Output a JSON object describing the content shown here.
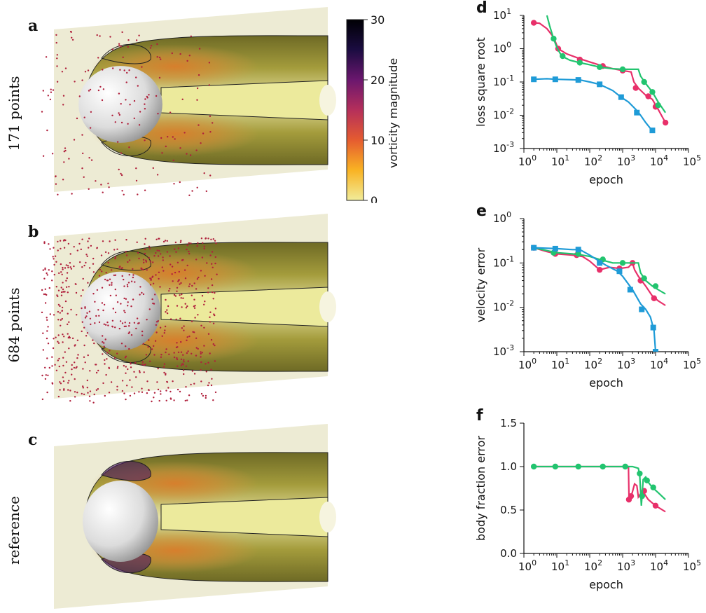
{
  "panels": {
    "a": {
      "letter": "a",
      "label": "171 points",
      "n_points": 171,
      "sphere_deform": 0.18
    },
    "b": {
      "letter": "b",
      "label": "684 points",
      "n_points": 684,
      "sphere_deform": 0.1
    },
    "c": {
      "letter": "c",
      "label": "reference",
      "n_points": 0,
      "sphere_deform": 0
    }
  },
  "colorbar": {
    "label": "vorticity magnitude",
    "ticks": [
      "0",
      "10",
      "20",
      "30"
    ],
    "range": [
      0,
      30
    ],
    "colors": [
      "#f1ec9a",
      "#f9b323",
      "#e55c30",
      "#b52f5b",
      "#6b176e",
      "#1b0c41",
      "#000004"
    ]
  },
  "colors": {
    "red": "#e8306a",
    "green": "#22c46f",
    "blue": "#1f9bd7",
    "points": "#b0203c"
  },
  "chart_data": [
    {
      "type": "line",
      "letter": "d",
      "xlabel": "epoch",
      "ylabel": "loss square root",
      "xscale": "log",
      "yscale": "log",
      "xlim": [
        1,
        100000
      ],
      "ylim": [
        0.001,
        10
      ],
      "xticks": [
        "10^0",
        "10^1",
        "10^2",
        "10^3",
        "10^4",
        "10^5"
      ],
      "yticks": [
        "10^-3",
        "10^-2",
        "10^-1",
        "10^0",
        "10^1"
      ],
      "series": [
        {
          "color": "#e8306a",
          "marker": "circle",
          "line": [
            [
              2,
              6
            ],
            [
              3,
              5.8
            ],
            [
              5,
              4
            ],
            [
              8,
              2.2
            ],
            [
              11,
              1
            ],
            [
              20,
              0.7
            ],
            [
              50,
              0.5
            ],
            [
              100,
              0.4
            ],
            [
              250,
              0.3
            ],
            [
              500,
              0.25
            ],
            [
              1000,
              0.22
            ],
            [
              1800,
              0.2
            ],
            [
              2200,
              0.1
            ],
            [
              3000,
              0.065
            ],
            [
              5000,
              0.04
            ],
            [
              8000,
              0.03
            ],
            [
              12000,
              0.015
            ],
            [
              20000,
              0.006
            ]
          ],
          "markers": [
            [
              2,
              6
            ],
            [
              11,
              1
            ],
            [
              50,
              0.47
            ],
            [
              250,
              0.3
            ],
            [
              1000,
              0.22
            ],
            [
              2500,
              0.066
            ],
            [
              6000,
              0.037
            ],
            [
              10000,
              0.018
            ],
            [
              20000,
              0.006
            ]
          ]
        },
        {
          "color": "#22c46f",
          "marker": "circle",
          "line": [
            [
              5,
              10
            ],
            [
              6,
              5
            ],
            [
              8,
              2
            ],
            [
              10,
              1.1
            ],
            [
              14,
              0.6
            ],
            [
              25,
              0.45
            ],
            [
              50,
              0.38
            ],
            [
              100,
              0.33
            ],
            [
              200,
              0.28
            ],
            [
              500,
              0.25
            ],
            [
              1000,
              0.24
            ],
            [
              2000,
              0.24
            ],
            [
              3000,
              0.24
            ],
            [
              3500,
              0.15
            ],
            [
              5000,
              0.09
            ],
            [
              8000,
              0.05
            ],
            [
              12000,
              0.025
            ],
            [
              20000,
              0.012
            ]
          ],
          "markers": [
            [
              8,
              2
            ],
            [
              15,
              0.6
            ],
            [
              50,
              0.38
            ],
            [
              200,
              0.28
            ],
            [
              1000,
              0.24
            ],
            [
              4500,
              0.1
            ],
            [
              8000,
              0.05
            ],
            [
              12000,
              0.02
            ]
          ]
        },
        {
          "color": "#1f9bd7",
          "marker": "square",
          "line": [
            [
              2,
              0.12
            ],
            [
              5,
              0.125
            ],
            [
              10,
              0.12
            ],
            [
              50,
              0.115
            ],
            [
              100,
              0.1
            ],
            [
              200,
              0.085
            ],
            [
              500,
              0.055
            ],
            [
              900,
              0.035
            ],
            [
              1500,
              0.025
            ],
            [
              2500,
              0.015
            ],
            [
              3500,
              0.01
            ],
            [
              5000,
              0.006
            ],
            [
              7000,
              0.004
            ],
            [
              8000,
              0.0035
            ]
          ],
          "markers": [
            [
              2,
              0.12
            ],
            [
              9,
              0.12
            ],
            [
              45,
              0.115
            ],
            [
              200,
              0.085
            ],
            [
              900,
              0.035
            ],
            [
              2700,
              0.012
            ],
            [
              8000,
              0.0035
            ]
          ]
        }
      ]
    },
    {
      "type": "line",
      "letter": "e",
      "xlabel": "epoch",
      "ylabel": "velocity error",
      "xscale": "log",
      "yscale": "log",
      "xlim": [
        1,
        100000
      ],
      "ylim": [
        0.001,
        1
      ],
      "xticks": [
        "10^0",
        "10^1",
        "10^2",
        "10^3",
        "10^4",
        "10^5"
      ],
      "yticks": [
        "10^-3",
        "10^-2",
        "10^-1",
        "10^0"
      ],
      "series": [
        {
          "color": "#e8306a",
          "marker": "circle",
          "line": [
            [
              2,
              0.22
            ],
            [
              5,
              0.18
            ],
            [
              10,
              0.16
            ],
            [
              30,
              0.15
            ],
            [
              60,
              0.14
            ],
            [
              100,
              0.11
            ],
            [
              200,
              0.07
            ],
            [
              400,
              0.08
            ],
            [
              800,
              0.075
            ],
            [
              1500,
              0.08
            ],
            [
              2000,
              0.1
            ],
            [
              2300,
              0.07
            ],
            [
              3000,
              0.05
            ],
            [
              5000,
              0.03
            ],
            [
              8000,
              0.018
            ],
            [
              12000,
              0.014
            ],
            [
              20000,
              0.011
            ]
          ],
          "markers": [
            [
              2,
              0.22
            ],
            [
              9,
              0.16
            ],
            [
              40,
              0.15
            ],
            [
              200,
              0.07
            ],
            [
              800,
              0.075
            ],
            [
              2000,
              0.1
            ],
            [
              3500,
              0.04
            ],
            [
              9000,
              0.016
            ]
          ]
        },
        {
          "color": "#22c46f",
          "marker": "circle",
          "line": [
            [
              2,
              0.22
            ],
            [
              5,
              0.19
            ],
            [
              10,
              0.17
            ],
            [
              30,
              0.16
            ],
            [
              60,
              0.15
            ],
            [
              100,
              0.14
            ],
            [
              200,
              0.12
            ],
            [
              500,
              0.1
            ],
            [
              1000,
              0.1
            ],
            [
              2000,
              0.1
            ],
            [
              3000,
              0.1
            ],
            [
              3500,
              0.06
            ],
            [
              5000,
              0.04
            ],
            [
              8000,
              0.03
            ],
            [
              12000,
              0.025
            ],
            [
              20000,
              0.02
            ]
          ],
          "markers": [
            [
              8,
              0.17
            ],
            [
              45,
              0.16
            ],
            [
              250,
              0.12
            ],
            [
              1000,
              0.1
            ],
            [
              4500,
              0.045
            ],
            [
              10000,
              0.03
            ]
          ]
        },
        {
          "color": "#1f9bd7",
          "marker": "square",
          "line": [
            [
              2,
              0.22
            ],
            [
              10,
              0.21
            ],
            [
              30,
              0.2
            ],
            [
              50,
              0.2
            ],
            [
              100,
              0.15
            ],
            [
              300,
              0.09
            ],
            [
              700,
              0.065
            ],
            [
              1000,
              0.05
            ],
            [
              2000,
              0.025
            ],
            [
              3500,
              0.012
            ],
            [
              5000,
              0.009
            ],
            [
              7000,
              0.006
            ],
            [
              9000,
              0.003
            ],
            [
              10000,
              0.001
            ]
          ],
          "markers": [
            [
              2,
              0.22
            ],
            [
              9,
              0.21
            ],
            [
              45,
              0.2
            ],
            [
              200,
              0.1
            ],
            [
              800,
              0.065
            ],
            [
              1700,
              0.025
            ],
            [
              3800,
              0.009
            ],
            [
              8500,
              0.0035
            ],
            [
              10000,
              0.001
            ]
          ]
        }
      ]
    },
    {
      "type": "line",
      "letter": "f",
      "xlabel": "epoch",
      "ylabel": "body fraction error",
      "xscale": "log",
      "yscale": "linear",
      "xlim": [
        1,
        100000
      ],
      "ylim": [
        0,
        1.5
      ],
      "xticks": [
        "10^0",
        "10^1",
        "10^2",
        "10^3",
        "10^4",
        "10^5"
      ],
      "yticks": [
        "0.0",
        "0.5",
        "1.0",
        "1.5"
      ],
      "series": [
        {
          "color": "#e8306a",
          "marker": "circle",
          "line": [
            [
              2,
              1
            ],
            [
              1000,
              1
            ],
            [
              1500,
              1
            ],
            [
              1560,
              0.62
            ],
            [
              1800,
              0.65
            ],
            [
              2300,
              0.8
            ],
            [
              2700,
              0.78
            ],
            [
              3000,
              0.65
            ],
            [
              4000,
              0.72
            ],
            [
              6000,
              0.62
            ],
            [
              10000,
              0.55
            ],
            [
              20000,
              0.48
            ]
          ],
          "markers": [
            [
              1550,
              0.62
            ],
            [
              1800,
              0.66
            ],
            [
              4500,
              0.72
            ],
            [
              10000,
              0.55
            ]
          ]
        },
        {
          "color": "#22c46f",
          "marker": "circle",
          "line": [
            [
              2,
              1
            ],
            [
              100,
              1
            ],
            [
              1000,
              1
            ],
            [
              2000,
              1
            ],
            [
              3000,
              0.98
            ],
            [
              3300,
              0.9
            ],
            [
              3700,
              0.55
            ],
            [
              4200,
              0.85
            ],
            [
              5000,
              0.88
            ],
            [
              6000,
              0.82
            ],
            [
              8000,
              0.76
            ],
            [
              12000,
              0.7
            ],
            [
              20000,
              0.62
            ]
          ],
          "markers": [
            [
              2,
              1
            ],
            [
              9,
              1
            ],
            [
              45,
              1
            ],
            [
              250,
              1
            ],
            [
              1200,
              1
            ],
            [
              3300,
              0.92
            ],
            [
              3900,
              0.66
            ],
            [
              5500,
              0.84
            ],
            [
              8500,
              0.76
            ]
          ]
        }
      ]
    }
  ]
}
